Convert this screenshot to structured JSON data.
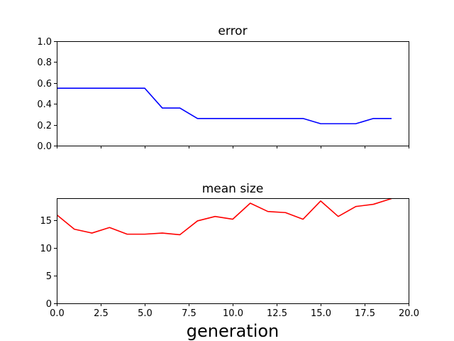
{
  "chart_data": [
    {
      "type": "line",
      "title": "error",
      "xlabel": "",
      "ylabel": "",
      "xlim": [
        0,
        20
      ],
      "ylim": [
        0,
        1
      ],
      "x_ticks": [
        0,
        2.5,
        5,
        7.5,
        10,
        12.5,
        15,
        17.5,
        20
      ],
      "x_tick_labels": [],
      "y_ticks": [
        0,
        0.2,
        0.4,
        0.6,
        0.8,
        1.0
      ],
      "y_tick_labels": [
        "0.0",
        "0.2",
        "0.4",
        "0.6",
        "0.8",
        "1.0"
      ],
      "grid": false,
      "series": [
        {
          "color": "#0000ff",
          "x": [
            0,
            1,
            2,
            3,
            4,
            5,
            6,
            7,
            8,
            9,
            10,
            11,
            12,
            13,
            14,
            15,
            16,
            17,
            18,
            19
          ],
          "y": [
            0.55,
            0.55,
            0.55,
            0.55,
            0.55,
            0.55,
            0.36,
            0.36,
            0.26,
            0.26,
            0.26,
            0.26,
            0.26,
            0.26,
            0.26,
            0.21,
            0.21,
            0.21,
            0.26,
            0.26
          ]
        }
      ]
    },
    {
      "type": "line",
      "title": "mean size",
      "xlabel": "generation",
      "ylabel": "",
      "xlim": [
        0,
        20
      ],
      "ylim": [
        0,
        19
      ],
      "x_ticks": [
        0,
        2.5,
        5,
        7.5,
        10,
        12.5,
        15,
        17.5,
        20
      ],
      "x_tick_labels": [
        "0.0",
        "2.5",
        "5.0",
        "7.5",
        "10.0",
        "12.5",
        "15.0",
        "17.5",
        "20.0"
      ],
      "y_ticks": [
        0,
        5,
        10,
        15
      ],
      "y_tick_labels": [
        "0",
        "5",
        "10",
        "15"
      ],
      "grid": false,
      "series": [
        {
          "color": "#ff0000",
          "x": [
            0,
            1,
            2,
            3,
            4,
            5,
            6,
            7,
            8,
            9,
            10,
            11,
            12,
            13,
            14,
            15,
            16,
            17,
            18,
            19
          ],
          "y": [
            16.0,
            13.4,
            12.7,
            13.7,
            12.5,
            12.5,
            12.7,
            12.4,
            14.9,
            15.7,
            15.2,
            18.1,
            16.6,
            16.4,
            15.2,
            18.5,
            15.7,
            17.5,
            17.9,
            18.9
          ]
        }
      ]
    }
  ]
}
